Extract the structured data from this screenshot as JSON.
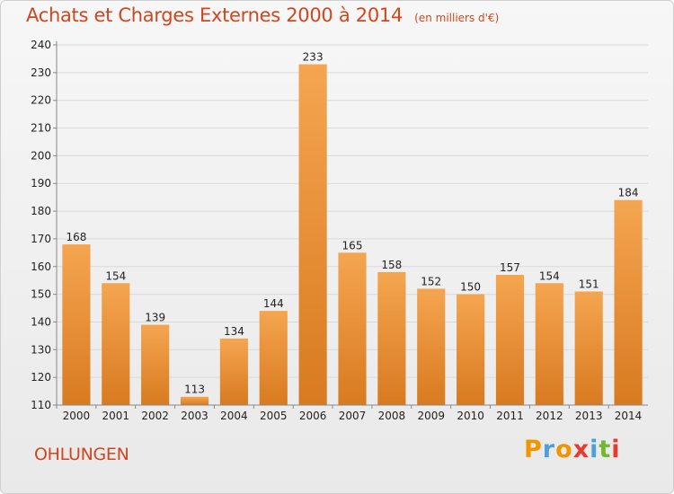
{
  "header": {
    "title": "Achats et Charges Externes 2000 à 2014",
    "unit": "(en milliers d'€)"
  },
  "footer": {
    "city": "OHLUNGEN",
    "logo": {
      "letters": [
        "P",
        "r",
        "o",
        "x",
        "i",
        "t",
        "i"
      ],
      "colors": [
        "#f29400",
        "#4ea0d8",
        "#f29400",
        "#e63b2e",
        "#4ea0d8",
        "#73b72e",
        "#e63b2e"
      ]
    }
  },
  "colors": {
    "accent": "#d0461e",
    "bar_light": "#f5a550",
    "bar_dark": "#d87a20"
  },
  "chart_data": {
    "type": "bar",
    "categories": [
      "2000",
      "2001",
      "2002",
      "2003",
      "2004",
      "2005",
      "2006",
      "2007",
      "2008",
      "2009",
      "2010",
      "2011",
      "2012",
      "2013",
      "2014"
    ],
    "values": [
      168,
      154,
      139,
      113,
      134,
      144,
      233,
      165,
      158,
      152,
      150,
      157,
      154,
      151,
      184
    ],
    "ylim": [
      110,
      240
    ],
    "yticks": [
      110,
      120,
      130,
      140,
      150,
      160,
      170,
      180,
      190,
      200,
      210,
      220,
      230,
      240
    ],
    "grid": true
  }
}
